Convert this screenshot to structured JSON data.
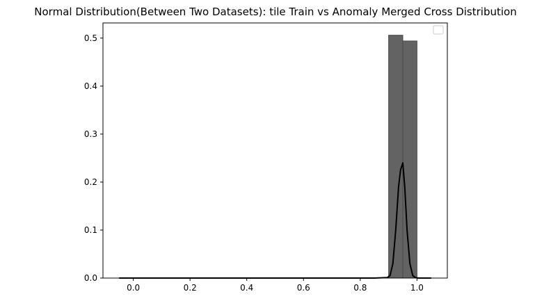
{
  "chart_data": {
    "type": "bar",
    "title": "Normal Distribution(Between Two Datasets): tile Train vs Anomaly Merged Cross Distribution",
    "xlabel": "",
    "ylabel": "",
    "xlim": [
      -0.107,
      1.107
    ],
    "ylim": [
      0,
      0.5316
    ],
    "x_ticks": [
      "0.0",
      "0.2",
      "0.4",
      "0.6",
      "0.8",
      "1.0"
    ],
    "x_tick_values": [
      0.0,
      0.2,
      0.4,
      0.6,
      0.8,
      1.0
    ],
    "y_ticks": [
      "0.0",
      "0.1",
      "0.2",
      "0.3",
      "0.4",
      "0.5"
    ],
    "y_tick_values": [
      0.0,
      0.1,
      0.2,
      0.3,
      0.4,
      0.5
    ],
    "grid": false,
    "legend": {
      "placement": "top-right",
      "entries": []
    },
    "histogram": {
      "bin_edges": [
        0.9,
        0.95,
        1.0
      ],
      "values": [
        0.506,
        0.494
      ],
      "color": "#636363",
      "edge_color": "#4a4a4a"
    },
    "density_curve": {
      "color": "#000000",
      "x": [
        -0.05,
        0.85,
        0.895,
        0.905,
        0.915,
        0.925,
        0.935,
        0.942,
        0.95,
        0.957,
        0.965,
        0.975,
        0.985,
        0.995,
        1.005,
        1.05
      ],
      "y": [
        0.0,
        0.0,
        0.001,
        0.005,
        0.03,
        0.1,
        0.19,
        0.225,
        0.24,
        0.19,
        0.1,
        0.03,
        0.005,
        0.001,
        0.0,
        0.0
      ]
    }
  }
}
